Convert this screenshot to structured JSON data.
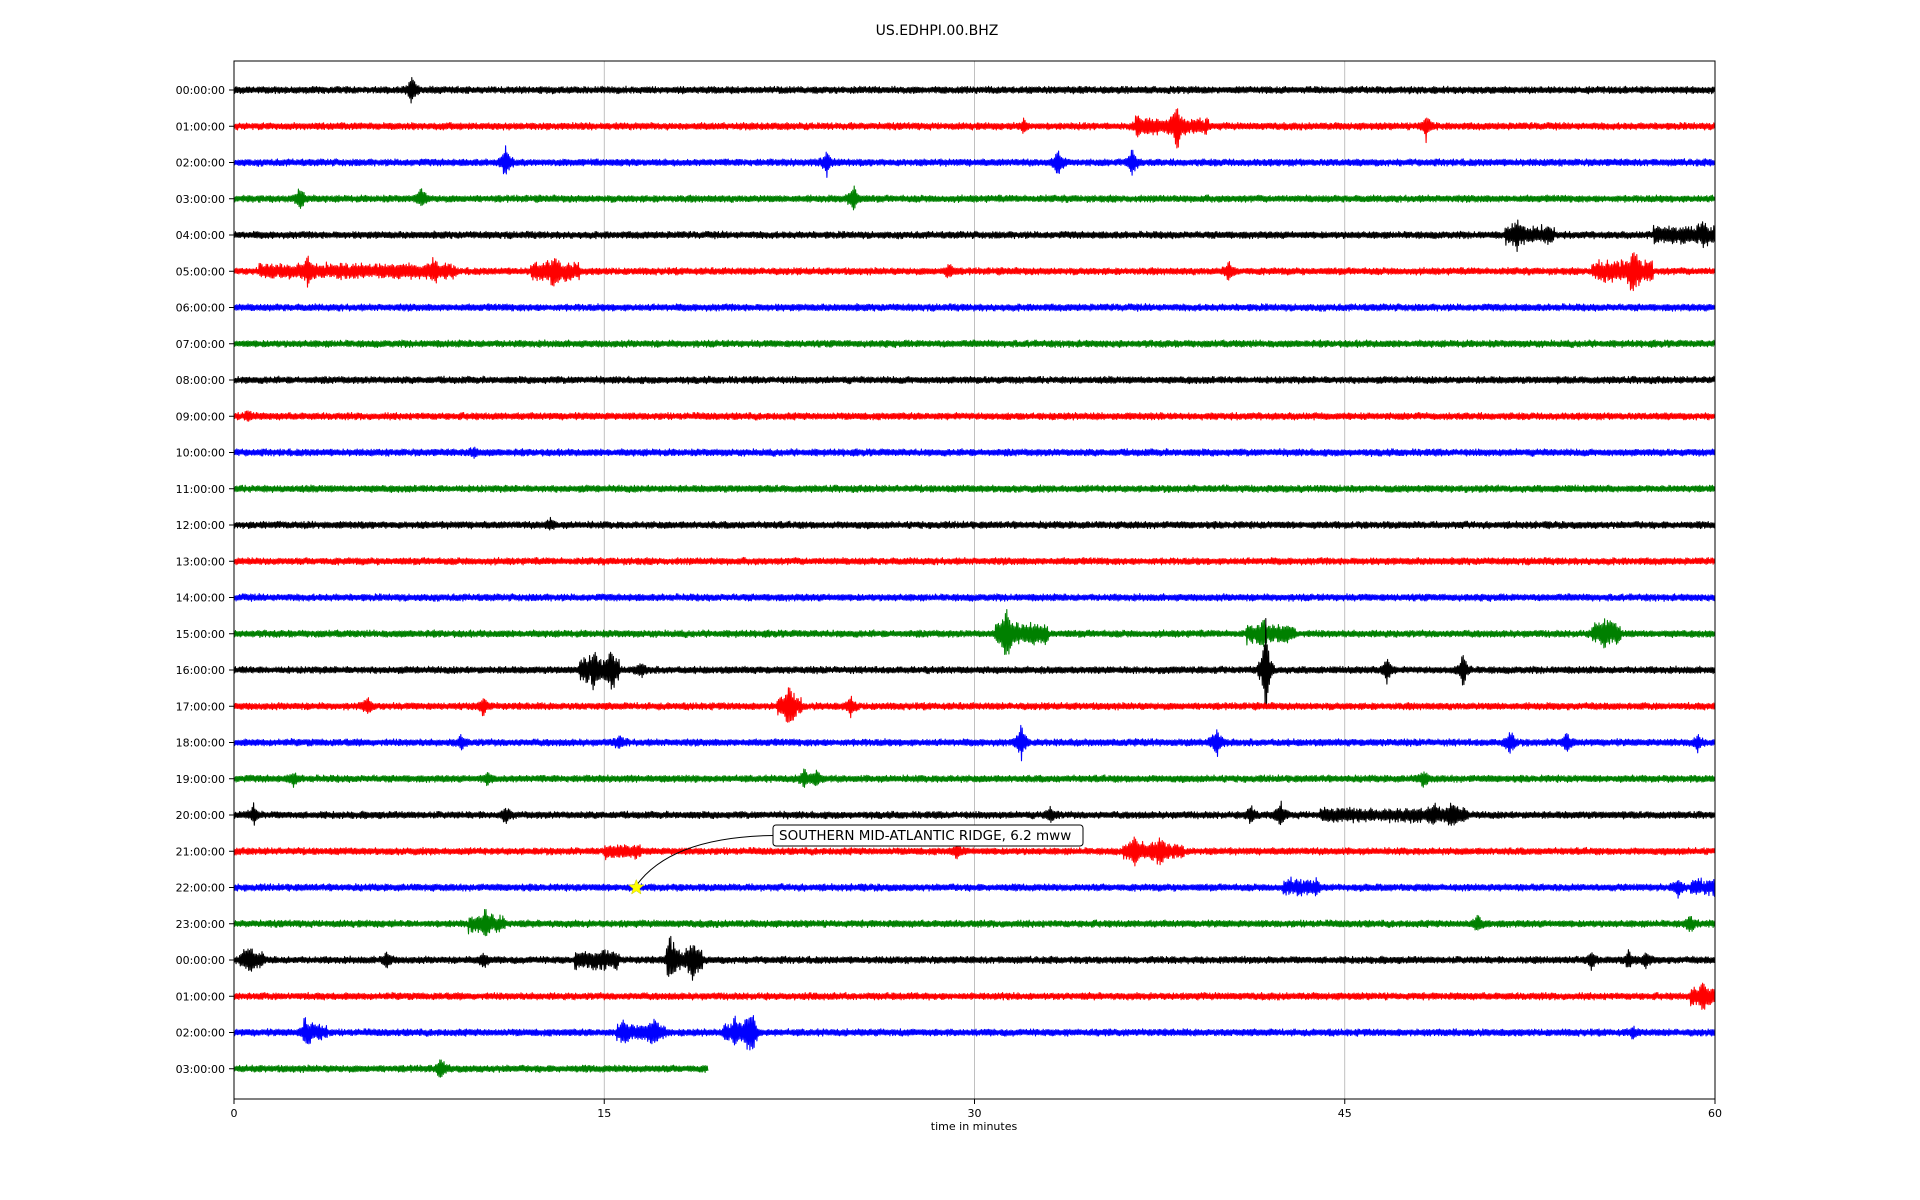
{
  "chart_data": {
    "type": "line",
    "title": "US.EDHPI.00.BHZ",
    "xlabel": "time in minutes",
    "xlim": [
      0,
      60
    ],
    "xticks": [
      0,
      15,
      30,
      45,
      60
    ],
    "grid": "vertical",
    "colors": [
      "#000000",
      "#ff0000",
      "#0000ff",
      "#008000"
    ],
    "rows": [
      {
        "label": "00:00:00",
        "end": 60,
        "spikes": [
          [
            7.2,
            1.0
          ]
        ],
        "bursts": []
      },
      {
        "label": "01:00:00",
        "end": 60,
        "spikes": [
          [
            38.2,
            1.2
          ],
          [
            48.3,
            0.8
          ],
          [
            36.6,
            0.5
          ],
          [
            32.0,
            0.4
          ]
        ],
        "bursts": [
          [
            36.5,
            39.5,
            0.4
          ]
        ]
      },
      {
        "label": "02:00:00",
        "end": 60,
        "spikes": [
          [
            11.0,
            1.1
          ],
          [
            24.0,
            0.9
          ],
          [
            33.4,
            1.0
          ],
          [
            36.4,
            1.0
          ]
        ],
        "bursts": []
      },
      {
        "label": "03:00:00",
        "end": 60,
        "spikes": [
          [
            2.7,
            0.8
          ],
          [
            7.6,
            0.7
          ],
          [
            25.1,
            0.9
          ]
        ],
        "bursts": []
      },
      {
        "label": "04:00:00",
        "end": 60,
        "spikes": [
          [
            52.0,
            0.5
          ],
          [
            59.5,
            0.5
          ]
        ],
        "bursts": [
          [
            51.5,
            53.5,
            0.45
          ],
          [
            57.5,
            60,
            0.45
          ]
        ]
      },
      {
        "label": "05:00:00",
        "end": 60,
        "spikes": [
          [
            3.0,
            0.6
          ],
          [
            8.1,
            0.6
          ],
          [
            13.0,
            0.9
          ],
          [
            29.0,
            0.5
          ],
          [
            40.3,
            0.6
          ],
          [
            56.7,
            1.3
          ]
        ],
        "bursts": [
          [
            1.0,
            9.0,
            0.35
          ],
          [
            12.0,
            14.0,
            0.45
          ],
          [
            55.0,
            57.5,
            0.6
          ]
        ]
      },
      {
        "label": "06:00:00",
        "end": 60,
        "spikes": [],
        "bursts": []
      },
      {
        "label": "07:00:00",
        "end": 60,
        "spikes": [],
        "bursts": []
      },
      {
        "label": "08:00:00",
        "end": 60,
        "spikes": [],
        "bursts": []
      },
      {
        "label": "09:00:00",
        "end": 60,
        "spikes": [
          [
            0.6,
            0.3
          ]
        ],
        "bursts": []
      },
      {
        "label": "10:00:00",
        "end": 60,
        "spikes": [
          [
            9.7,
            0.3
          ]
        ],
        "bursts": []
      },
      {
        "label": "11:00:00",
        "end": 60,
        "spikes": [],
        "bursts": []
      },
      {
        "label": "12:00:00",
        "end": 60,
        "spikes": [
          [
            12.8,
            0.3
          ]
        ],
        "bursts": []
      },
      {
        "label": "13:00:00",
        "end": 60,
        "spikes": [],
        "bursts": []
      },
      {
        "label": "14:00:00",
        "end": 60,
        "spikes": [],
        "bursts": []
      },
      {
        "label": "15:00:00",
        "end": 60,
        "spikes": [
          [
            31.3,
            1.8
          ],
          [
            41.7,
            0.6
          ],
          [
            55.5,
            0.6
          ]
        ],
        "bursts": [
          [
            30.8,
            33.0,
            0.55
          ],
          [
            41.0,
            43.0,
            0.45
          ],
          [
            55.0,
            56.2,
            0.55
          ]
        ]
      },
      {
        "label": "16:00:00",
        "end": 60,
        "spikes": [
          [
            15.3,
            1.0
          ],
          [
            14.6,
            0.9
          ],
          [
            16.5,
            0.4
          ],
          [
            41.8,
            3.5
          ],
          [
            46.7,
            0.9
          ],
          [
            49.8,
            1.1
          ]
        ],
        "bursts": [
          [
            14.0,
            15.6,
            0.6
          ]
        ]
      },
      {
        "label": "17:00:00",
        "end": 60,
        "spikes": [
          [
            5.4,
            0.6
          ],
          [
            10.1,
            0.6
          ],
          [
            22.5,
            1.2
          ],
          [
            25.0,
            0.6
          ]
        ],
        "bursts": [
          [
            22.0,
            23.0,
            0.45
          ]
        ]
      },
      {
        "label": "18:00:00",
        "end": 60,
        "spikes": [
          [
            9.2,
            0.4
          ],
          [
            15.6,
            0.4
          ],
          [
            31.9,
            1.3
          ],
          [
            39.8,
            1.0
          ],
          [
            51.7,
            0.9
          ],
          [
            54.0,
            0.6
          ],
          [
            59.3,
            0.5
          ]
        ],
        "bursts": []
      },
      {
        "label": "19:00:00",
        "end": 60,
        "spikes": [
          [
            2.4,
            0.4
          ],
          [
            10.3,
            0.4
          ],
          [
            23.1,
            0.6
          ],
          [
            23.6,
            0.5
          ],
          [
            48.2,
            0.5
          ]
        ],
        "bursts": []
      },
      {
        "label": "20:00:00",
        "end": 60,
        "spikes": [
          [
            0.8,
            0.6
          ],
          [
            11.0,
            0.5
          ],
          [
            33.1,
            0.5
          ],
          [
            41.2,
            0.6
          ],
          [
            42.4,
            0.9
          ],
          [
            48.6,
            0.6
          ],
          [
            49.3,
            0.7
          ]
        ],
        "bursts": [
          [
            44.0,
            50.0,
            0.3
          ]
        ]
      },
      {
        "label": "21:00:00",
        "end": 60,
        "spikes": [
          [
            29.3,
            0.4
          ],
          [
            36.5,
            0.6
          ],
          [
            37.5,
            0.6
          ]
        ],
        "bursts": [
          [
            15.0,
            16.5,
            0.3
          ],
          [
            36.0,
            38.5,
            0.4
          ]
        ]
      },
      {
        "label": "22:00:00",
        "end": 60,
        "spikes": [
          [
            58.5,
            0.6
          ]
        ],
        "bursts": [
          [
            42.5,
            44.0,
            0.4
          ],
          [
            59.0,
            60,
            0.4
          ]
        ]
      },
      {
        "label": "23:00:00",
        "end": 60,
        "spikes": [
          [
            10.2,
            0.8
          ],
          [
            50.4,
            0.5
          ],
          [
            59.0,
            0.5
          ]
        ],
        "bursts": [
          [
            9.5,
            11.0,
            0.4
          ]
        ]
      },
      {
        "label": "00:00:00",
        "end": 60,
        "spikes": [
          [
            0.6,
            0.5
          ],
          [
            6.2,
            0.5
          ],
          [
            10.1,
            0.5
          ],
          [
            17.7,
            1.1
          ],
          [
            18.6,
            1.0
          ],
          [
            55.0,
            0.6
          ],
          [
            56.5,
            0.6
          ],
          [
            57.2,
            0.5
          ]
        ],
        "bursts": [
          [
            0.2,
            1.2,
            0.4
          ],
          [
            13.8,
            15.6,
            0.5
          ],
          [
            17.5,
            19.0,
            0.6
          ]
        ]
      },
      {
        "label": "01:00:00",
        "end": 60,
        "spikes": [
          [
            59.5,
            0.6
          ]
        ],
        "bursts": [
          [
            59.0,
            60,
            0.45
          ]
        ]
      },
      {
        "label": "02:00:00",
        "end": 60,
        "spikes": [
          [
            2.9,
            0.7
          ],
          [
            15.8,
            0.6
          ],
          [
            17.0,
            0.6
          ],
          [
            20.3,
            0.8
          ],
          [
            20.8,
            0.7
          ],
          [
            21.0,
            0.8
          ],
          [
            56.7,
            0.3
          ]
        ],
        "bursts": [
          [
            2.8,
            3.8,
            0.4
          ],
          [
            15.5,
            17.5,
            0.4
          ],
          [
            19.8,
            21.2,
            0.4
          ]
        ]
      },
      {
        "label": "03:00:00",
        "end": 19.2,
        "spikes": [
          [
            8.4,
            0.6
          ]
        ],
        "bursts": []
      }
    ],
    "event": {
      "label": "SOUTHERN MID-ATLANTIC RIDGE, 6.2 mww",
      "row": 22,
      "minute": 16.3,
      "color": "#ffff00"
    }
  }
}
